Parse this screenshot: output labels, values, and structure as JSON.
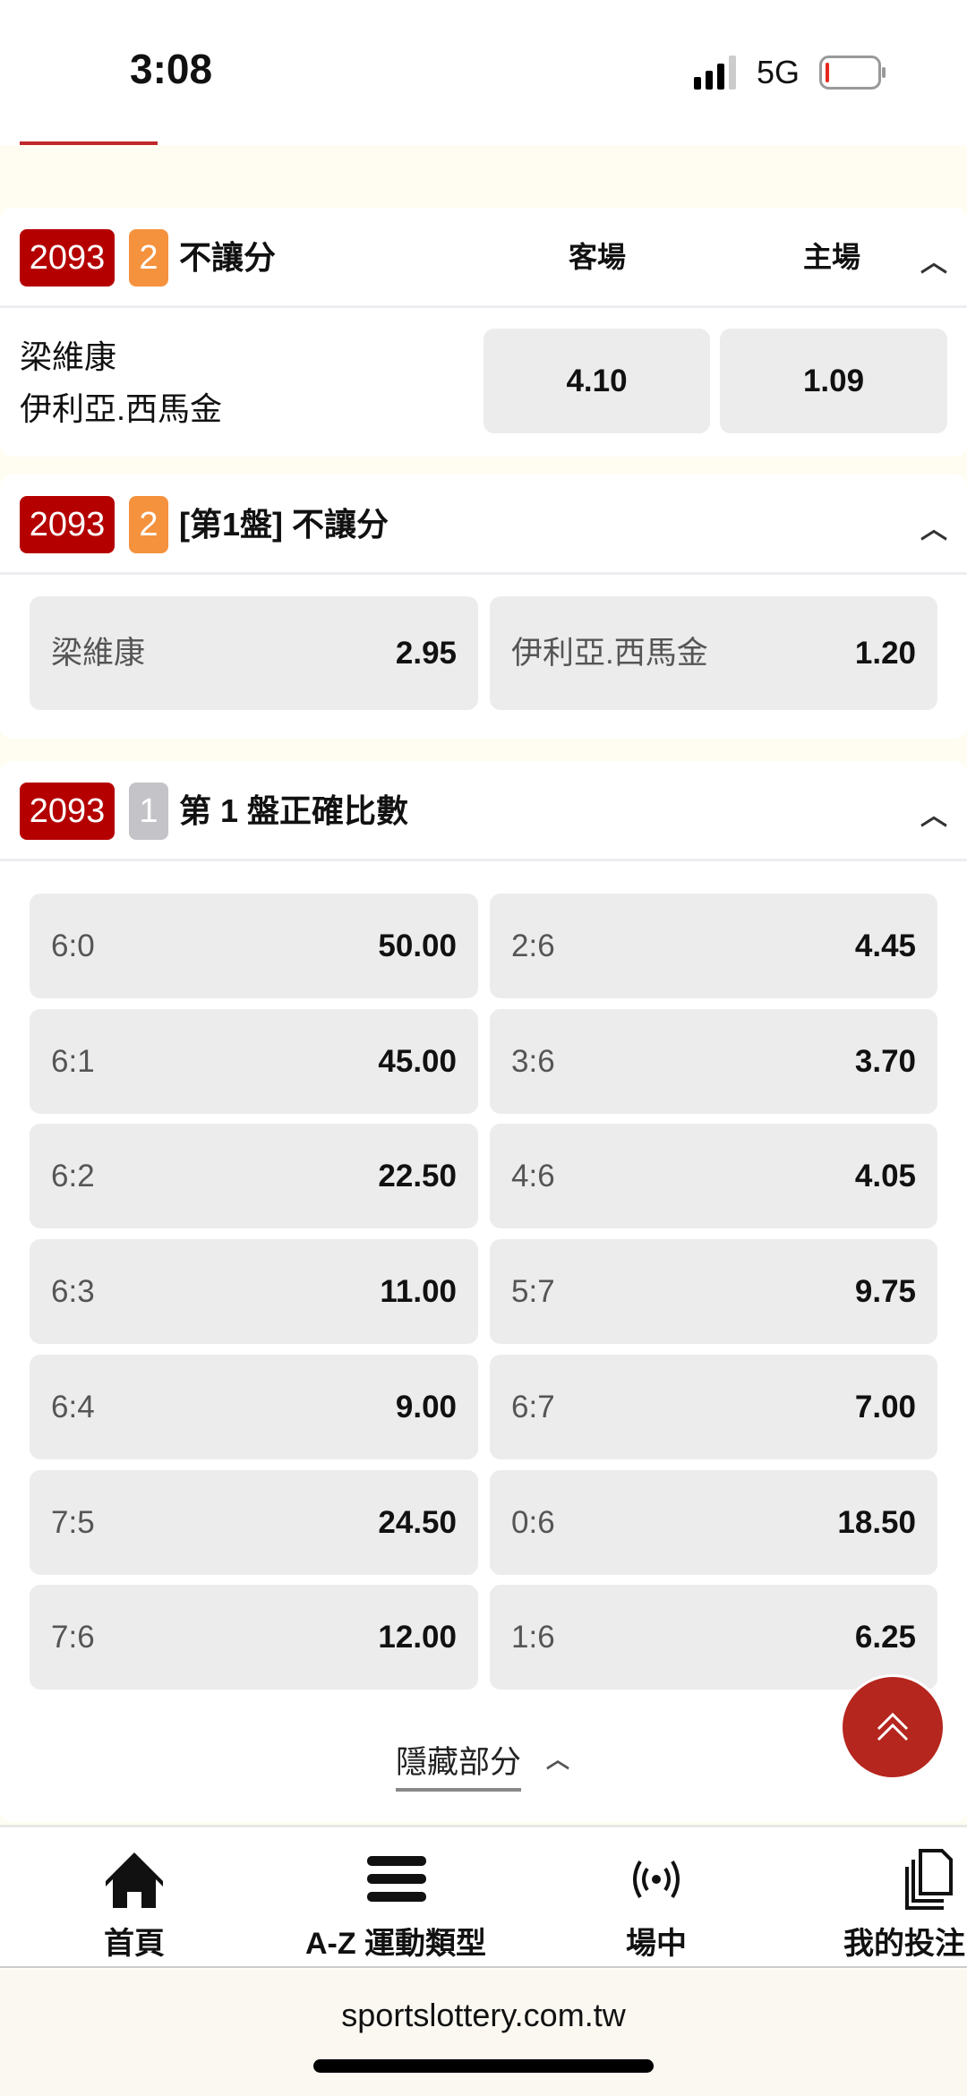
{
  "status_bar": {
    "time": "3:08",
    "network": "5G",
    "battery_level": 0.05
  },
  "colors": {
    "badge_id": "#b50000",
    "badge_count_orange": "#f5923e",
    "badge_count_gray": "#c4c4c8",
    "fab": "#b5261e"
  },
  "sections": [
    {
      "id": "2093",
      "count": "2",
      "title": "不讓分",
      "col_away": "客場",
      "col_home": "主場",
      "teams": [
        "梁維康",
        "伊利亞.西馬金"
      ],
      "odds": [
        "4.10",
        "1.09"
      ]
    },
    {
      "id": "2093",
      "count": "2",
      "title": "[第1盤] 不讓分",
      "options": [
        {
          "label": "梁維康",
          "odds": "2.95"
        },
        {
          "label": "伊利亞.西馬金",
          "odds": "1.20"
        }
      ]
    },
    {
      "id": "2093",
      "count": "1",
      "title": "第 1 盤正確比數",
      "options": [
        {
          "label": "6:0",
          "odds": "50.00"
        },
        {
          "label": "2:6",
          "odds": "4.45"
        },
        {
          "label": "6:1",
          "odds": "45.00"
        },
        {
          "label": "3:6",
          "odds": "3.70"
        },
        {
          "label": "6:2",
          "odds": "22.50"
        },
        {
          "label": "4:6",
          "odds": "4.05"
        },
        {
          "label": "6:3",
          "odds": "11.00"
        },
        {
          "label": "5:7",
          "odds": "9.75"
        },
        {
          "label": "6:4",
          "odds": "9.00"
        },
        {
          "label": "6:7",
          "odds": "7.00"
        },
        {
          "label": "7:5",
          "odds": "24.50"
        },
        {
          "label": "0:6",
          "odds": "18.50"
        },
        {
          "label": "7:6",
          "odds": "12.00"
        },
        {
          "label": "1:6",
          "odds": "6.25"
        }
      ],
      "hide_label": "隱藏部分"
    }
  ],
  "nav": [
    {
      "label": "首頁",
      "icon": "home-icon"
    },
    {
      "label": "A-Z 運動類型",
      "icon": "menu-icon"
    },
    {
      "label": "場中",
      "icon": "live-icon"
    },
    {
      "label": "我的投注",
      "icon": "documents-icon"
    }
  ],
  "browser": {
    "url": "sportslottery.com.tw"
  }
}
